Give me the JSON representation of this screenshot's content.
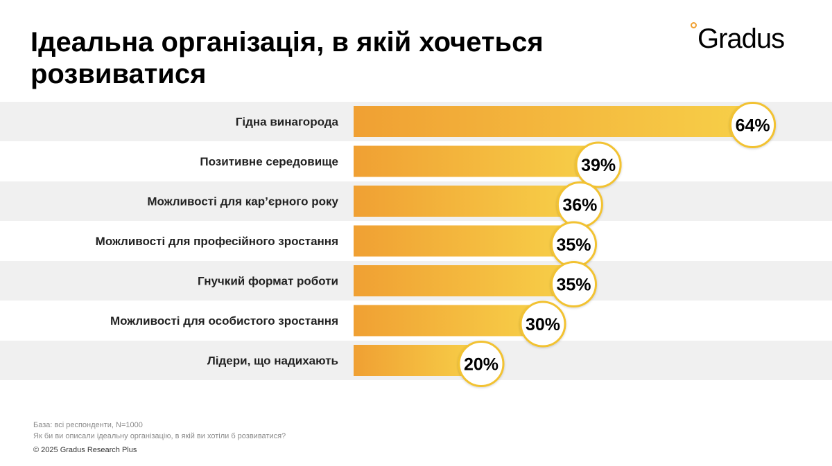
{
  "title": "Ідеальна організація, в якій хочеться розвиватися",
  "logo": {
    "text": "Gradus",
    "color": "#f0a030"
  },
  "colors": {
    "bar_start": "#f0a033",
    "bar_end": "#f7cf48",
    "band": "#f0f0f0",
    "bubble_border": "#f2c230"
  },
  "chart_data": {
    "type": "bar",
    "orientation": "horizontal",
    "categories": [
      "Гідна винагорода",
      "Позитивне середовище",
      "Можливості для кар’єрного року",
      "Можливості для професійного зростання",
      "Гнучкий формат роботи",
      "Можливості для особистого зростання",
      "Лідери, що надихають"
    ],
    "values": [
      64,
      39,
      36,
      35,
      35,
      30,
      20
    ],
    "value_labels": [
      "64%",
      "39%",
      "36%",
      "35%",
      "35%",
      "30%",
      "20%"
    ],
    "unit": "%",
    "xlim": [
      0,
      100
    ]
  },
  "footer": {
    "base": "База: всі респонденти, N=1000",
    "question": "Як би ви описали ідеальну організацію, в якій ви хотіли б розвиватися?",
    "copyright": "© 2025 Gradus Research Plus"
  }
}
